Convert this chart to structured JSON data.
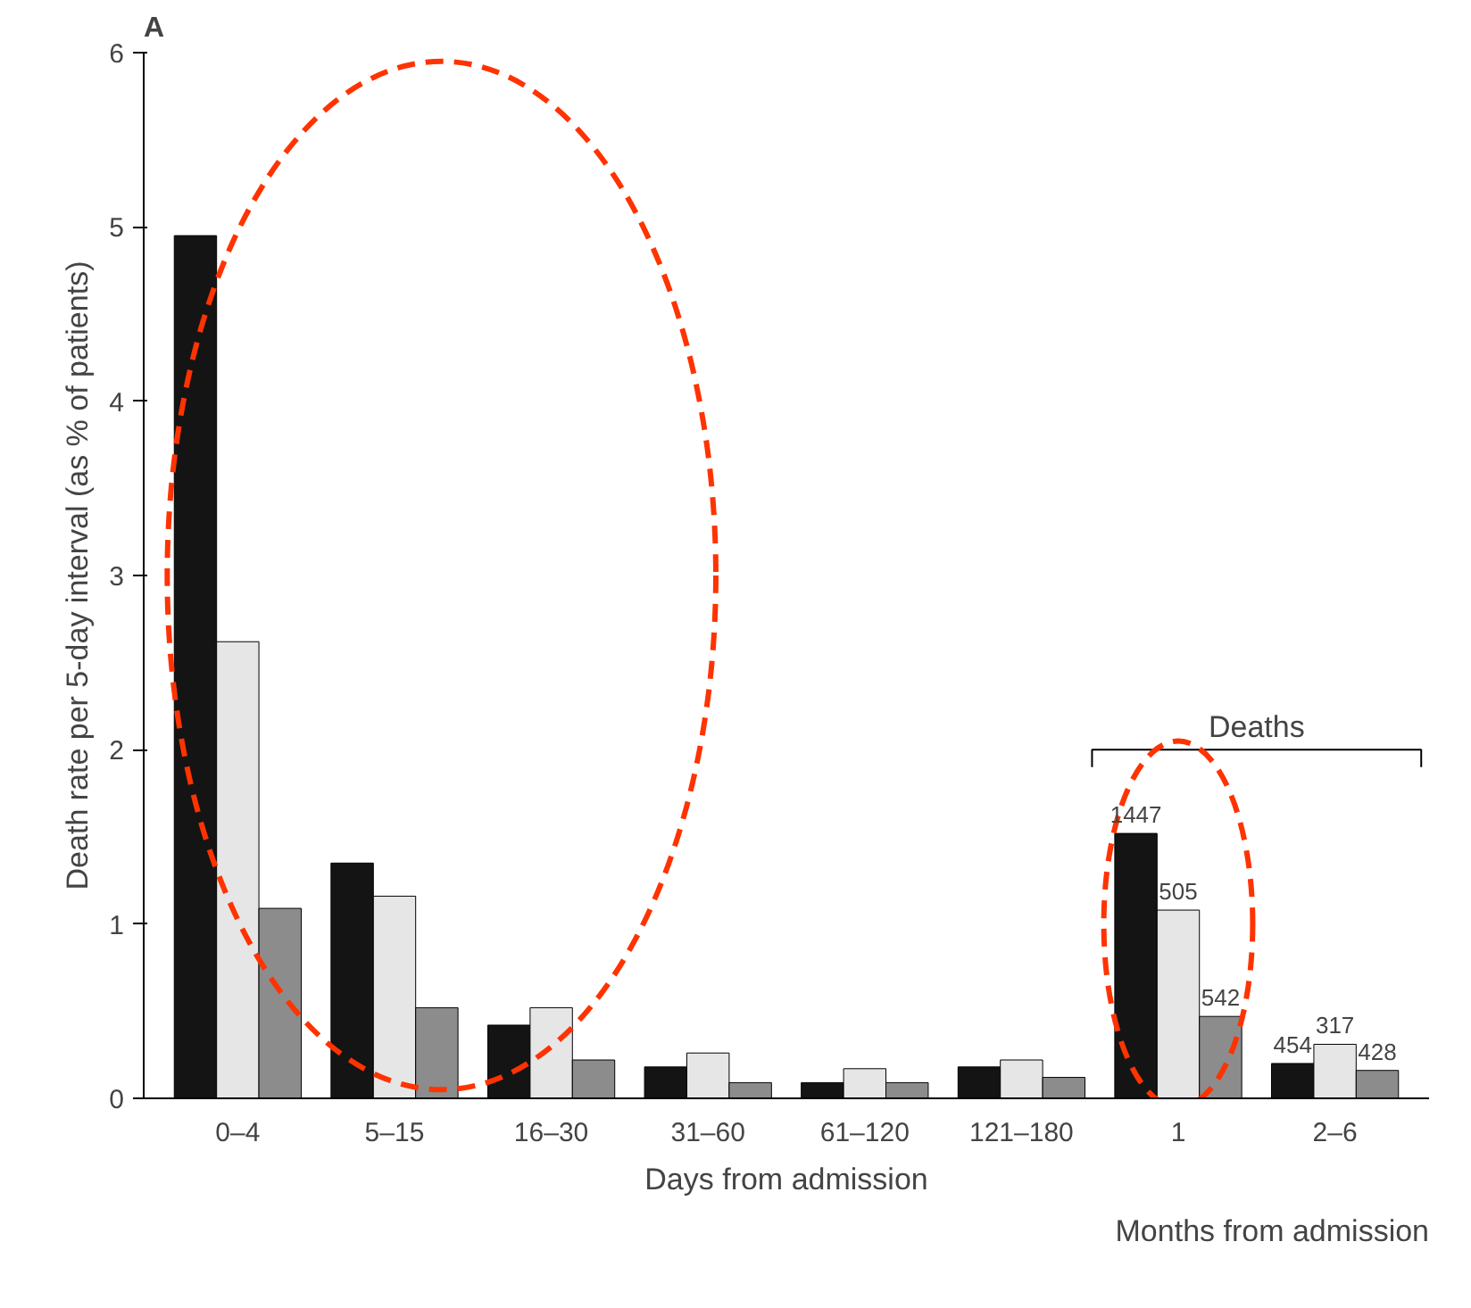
{
  "chart_data": {
    "type": "bar",
    "title": "A",
    "ylabel": "Death rate per 5-day interval (as % of patients)",
    "xlabel": "Days from admission",
    "categories": [
      "0–4",
      "5–15",
      "16–30",
      "31–60",
      "61–120",
      "121–180",
      "1",
      "2–6"
    ],
    "series": [
      {
        "color": "#141414",
        "values": [
          4.95,
          1.35,
          0.42,
          0.18,
          0.09,
          0.18,
          1.52,
          0.2
        ]
      },
      {
        "color": "#e6e6e6",
        "values": [
          2.62,
          1.16,
          0.52,
          0.26,
          0.17,
          0.22,
          1.08,
          0.31
        ]
      },
      {
        "color": "#8c8c8c",
        "values": [
          1.09,
          0.52,
          0.22,
          0.09,
          0.09,
          0.12,
          0.47,
          0.16
        ]
      }
    ],
    "ylim": [
      0,
      6
    ],
    "yticks": [
      0,
      1,
      2,
      3,
      4,
      5,
      6
    ],
    "grid": false,
    "annotations": [
      "Deaths",
      "Months from admission",
      "1447",
      "505",
      "542",
      "454",
      "317",
      "428"
    ]
  }
}
